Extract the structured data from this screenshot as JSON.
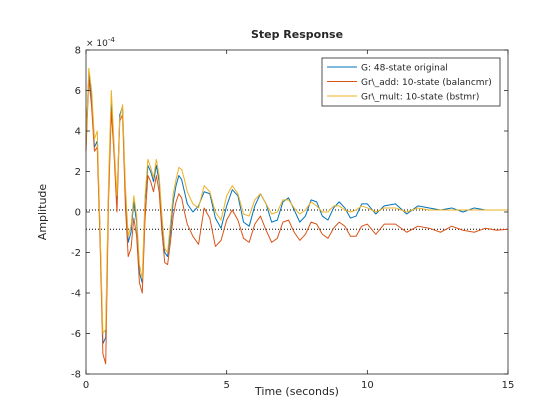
{
  "figure": {
    "background": "#ffffff",
    "axes_color": "#262626",
    "axes_background": "#ffffff"
  },
  "chart_data": {
    "type": "line",
    "title": "Step Response",
    "xlabel": "Time (seconds)",
    "ylabel": "Amplitude",
    "y_exponent_label": "× 10",
    "y_exponent_power": "-4",
    "xlim": [
      0,
      15
    ],
    "ylim": [
      -8,
      8
    ],
    "y_scale_factor": 0.0001,
    "x_ticks": [
      0,
      5,
      10,
      15
    ],
    "x_tick_labels": [
      "0",
      "5",
      "10",
      "15"
    ],
    "y_ticks": [
      -8,
      -6,
      -4,
      -2,
      0,
      2,
      4,
      6,
      8
    ],
    "y_tick_labels": [
      "-8",
      "-6",
      "-4",
      "-2",
      "0",
      "2",
      "4",
      "6",
      "8"
    ],
    "grid": false,
    "legend_position": "top-right",
    "steady_state_lines": [
      {
        "y": 0.1,
        "style": "dotted"
      },
      {
        "y": -0.85,
        "style": "dotted"
      }
    ],
    "x": [
      0,
      0.1,
      0.2,
      0.3,
      0.4,
      0.5,
      0.6,
      0.7,
      0.8,
      0.9,
      1.0,
      1.1,
      1.2,
      1.3,
      1.4,
      1.5,
      1.6,
      1.7,
      1.8,
      1.9,
      2.0,
      2.1,
      2.2,
      2.3,
      2.4,
      2.5,
      2.6,
      2.7,
      2.8,
      2.9,
      3.0,
      3.1,
      3.2,
      3.3,
      3.4,
      3.5,
      3.6,
      3.8,
      4.0,
      4.2,
      4.4,
      4.6,
      4.8,
      5.0,
      5.2,
      5.4,
      5.6,
      5.8,
      6.0,
      6.2,
      6.4,
      6.6,
      6.8,
      7.0,
      7.2,
      7.4,
      7.6,
      7.8,
      8.0,
      8.2,
      8.4,
      8.6,
      8.8,
      9.0,
      9.2,
      9.4,
      9.6,
      9.8,
      10.0,
      10.3,
      10.6,
      11.0,
      11.4,
      11.8,
      12.2,
      12.6,
      13.0,
      13.4,
      13.8,
      14.2,
      14.6,
      15.0
    ],
    "series": [
      {
        "name": "G: 48-state original",
        "color": "#0072bd",
        "values": [
          3.5,
          6.8,
          5.6,
          3.2,
          3.5,
          -1.0,
          -6.5,
          -6.2,
          1.0,
          5.5,
          3.0,
          0.5,
          4.8,
          5.2,
          1.0,
          -1.5,
          -1.0,
          0.5,
          -0.5,
          -3.0,
          -3.5,
          0.5,
          2.3,
          2.0,
          1.5,
          2.3,
          1.5,
          -0.5,
          -2.0,
          -2.2,
          -1.0,
          0.5,
          1.3,
          1.8,
          1.6,
          1.0,
          0.4,
          0.0,
          0.3,
          1.0,
          0.9,
          -0.3,
          -0.8,
          0.3,
          1.1,
          0.8,
          -0.5,
          -0.7,
          0.3,
          0.9,
          0.4,
          -0.5,
          -0.4,
          0.5,
          0.7,
          0.1,
          -0.5,
          -0.2,
          0.6,
          0.5,
          -0.2,
          -0.4,
          0.2,
          0.5,
          0.2,
          -0.3,
          -0.2,
          0.4,
          0.4,
          -0.1,
          0.3,
          0.4,
          -0.1,
          0.3,
          0.2,
          0.1,
          0.2,
          0.0,
          0.2,
          0.1,
          0.1,
          0.1
        ]
      },
      {
        "name": "Gr\\_add: 10-state (balancmr)",
        "color": "#d95319",
        "values": [
          3.0,
          6.6,
          5.2,
          3.0,
          3.2,
          -1.5,
          -7.0,
          -7.5,
          0.5,
          5.0,
          2.8,
          0.0,
          4.5,
          4.8,
          0.3,
          -2.2,
          -1.8,
          -0.3,
          -1.2,
          -3.5,
          -4.0,
          -0.3,
          1.8,
          1.5,
          1.0,
          1.8,
          1.0,
          -1.0,
          -2.5,
          -2.6,
          -1.5,
          -0.2,
          0.5,
          0.9,
          0.7,
          0.0,
          -0.6,
          -1.2,
          -1.6,
          0.2,
          -0.3,
          -1.7,
          -1.4,
          -0.4,
          0.1,
          -0.4,
          -1.3,
          -1.5,
          -0.6,
          -0.2,
          -0.9,
          -1.5,
          -1.3,
          -0.5,
          -0.4,
          -1.0,
          -1.4,
          -1.1,
          -0.5,
          -0.6,
          -1.1,
          -1.3,
          -0.8,
          -0.5,
          -0.7,
          -1.2,
          -1.2,
          -0.7,
          -0.6,
          -1.1,
          -0.6,
          -0.6,
          -1.0,
          -0.7,
          -0.8,
          -1.0,
          -0.7,
          -0.9,
          -1.0,
          -0.8,
          -0.9,
          -0.85
        ]
      },
      {
        "name": "Gr\\_mult: 10-state (bstmr)",
        "color": "#edb120",
        "values": [
          3.2,
          7.1,
          6.0,
          3.6,
          4.0,
          -0.8,
          -6.0,
          -5.8,
          1.4,
          6.0,
          3.3,
          0.8,
          4.6,
          5.3,
          1.3,
          -1.2,
          -0.7,
          0.8,
          -0.2,
          -2.6,
          -3.3,
          0.8,
          2.6,
          2.2,
          1.7,
          2.6,
          1.8,
          -0.2,
          -1.8,
          -2.0,
          -0.6,
          0.9,
          1.6,
          2.2,
          2.1,
          1.6,
          1.0,
          0.4,
          0.2,
          1.3,
          1.0,
          0.0,
          -0.4,
          0.8,
          1.3,
          0.9,
          -0.1,
          -0.2,
          0.6,
          0.9,
          0.4,
          -0.1,
          0.0,
          0.6,
          0.6,
          0.2,
          -0.1,
          0.1,
          0.5,
          0.3,
          0.0,
          0.0,
          0.3,
          0.3,
          0.1,
          0.0,
          0.1,
          0.3,
          0.2,
          0.0,
          0.2,
          0.2,
          0.0,
          0.2,
          0.1,
          0.1,
          0.1,
          0.1,
          0.1,
          0.1,
          0.1,
          0.1
        ]
      }
    ]
  }
}
